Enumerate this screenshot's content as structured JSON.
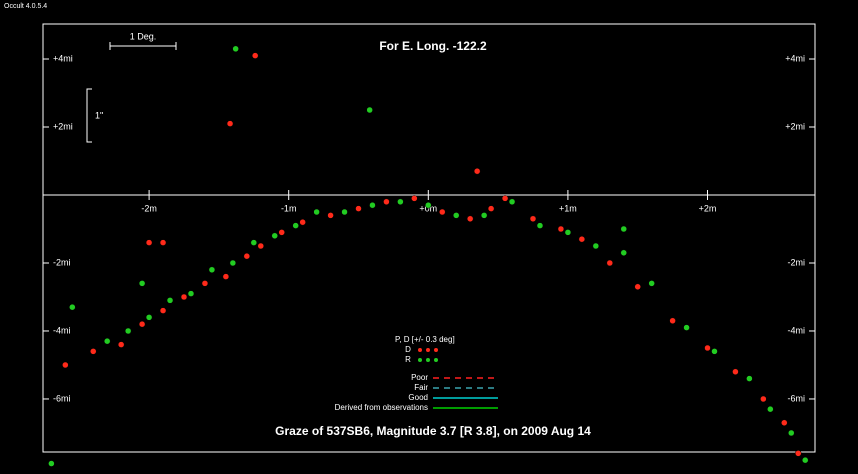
{
  "app": "Occult 4.0.5.4",
  "chart_data": {
    "type": "scatter",
    "title": "Graze of  537SB6,  Magnitude 3.7 [R 3.8],  on 2009 Aug 14",
    "subtitle": "For E. Long. -122.2",
    "scale_labels": {
      "degree": "1 Deg.",
      "arcsec": "1\""
    },
    "xlim": [
      -2.76,
      2.77
    ],
    "ylim": [
      -7.56,
      5.03
    ],
    "xticks": [
      {
        "value": -2,
        "label": "-2m"
      },
      {
        "value": -1,
        "label": "-1m"
      },
      {
        "value": 0,
        "label": "+0m"
      },
      {
        "value": 1,
        "label": "+1m"
      },
      {
        "value": 2,
        "label": "+2m"
      }
    ],
    "yticks": [
      {
        "value": 4,
        "label": "+4mi"
      },
      {
        "value": 2,
        "label": "+2mi"
      },
      {
        "value": -2,
        "label": "-2mi"
      },
      {
        "value": -4,
        "label": "-4mi"
      },
      {
        "value": -6,
        "label": "-6mi"
      }
    ],
    "legend": {
      "title": "P, D [+/- 0.3 deg]",
      "lines": [
        {
          "name": "Poor",
          "color": "#ff2020",
          "dash": "dashed"
        },
        {
          "name": "Fair",
          "color": "#3aa6b0",
          "dash": "dashed"
        },
        {
          "name": "Good",
          "color": "#00d0d0",
          "dash": "solid"
        },
        {
          "name": "Derived from observations",
          "color": "#00d000",
          "dash": "solid"
        }
      ]
    },
    "series": [
      {
        "name": "D",
        "color": "#ff2a1a",
        "x": [
          -2.6,
          -2.4,
          -2.2,
          -2.05,
          -1.9,
          -1.75,
          -1.6,
          -1.45,
          -1.3,
          -1.2,
          -1.05,
          -0.9,
          -0.7,
          -0.5,
          -0.3,
          -0.1,
          0.1,
          0.3,
          0.45,
          0.55,
          0.75,
          0.95,
          1.1,
          1.3,
          1.5,
          1.75,
          2.0,
          2.2,
          2.4,
          2.55,
          2.65,
          -1.42,
          -1.24,
          -2.0,
          -1.9,
          0.35
        ],
        "values": [
          -5.0,
          -4.6,
          -4.4,
          -3.8,
          -3.4,
          -3.0,
          -2.6,
          -2.4,
          -1.8,
          -1.5,
          -1.1,
          -0.8,
          -0.6,
          -0.4,
          -0.2,
          -0.1,
          -0.5,
          -0.7,
          -0.4,
          -0.1,
          -0.7,
          -1.0,
          -1.3,
          -2.0,
          -2.7,
          -3.7,
          -4.5,
          -5.2,
          -6.0,
          -6.7,
          -7.6,
          2.1,
          4.1,
          -1.4,
          -1.4,
          0.7
        ]
      },
      {
        "name": "R",
        "color": "#22cc22",
        "x": [
          -2.7,
          -2.55,
          -2.3,
          -2.15,
          -2.0,
          -1.85,
          -1.7,
          -1.55,
          -1.4,
          -1.25,
          -1.1,
          -0.95,
          -0.8,
          -0.6,
          -0.4,
          -0.2,
          0.0,
          0.2,
          0.4,
          0.6,
          0.8,
          1.0,
          1.2,
          1.4,
          1.6,
          1.85,
          2.05,
          2.3,
          2.45,
          2.6,
          2.7,
          -1.38,
          -0.42,
          -2.05,
          1.4
        ],
        "values": [
          -7.9,
          -3.3,
          -4.3,
          -4.0,
          -3.6,
          -3.1,
          -2.9,
          -2.2,
          -2.0,
          -1.4,
          -1.2,
          -0.9,
          -0.5,
          -0.5,
          -0.3,
          -0.2,
          -0.3,
          -0.6,
          -0.6,
          -0.2,
          -0.9,
          -1.1,
          -1.5,
          -1.7,
          -2.6,
          -3.9,
          -4.6,
          -5.4,
          -6.3,
          -7.0,
          -7.8,
          4.3,
          2.5,
          -2.6,
          -1.0
        ]
      }
    ]
  }
}
